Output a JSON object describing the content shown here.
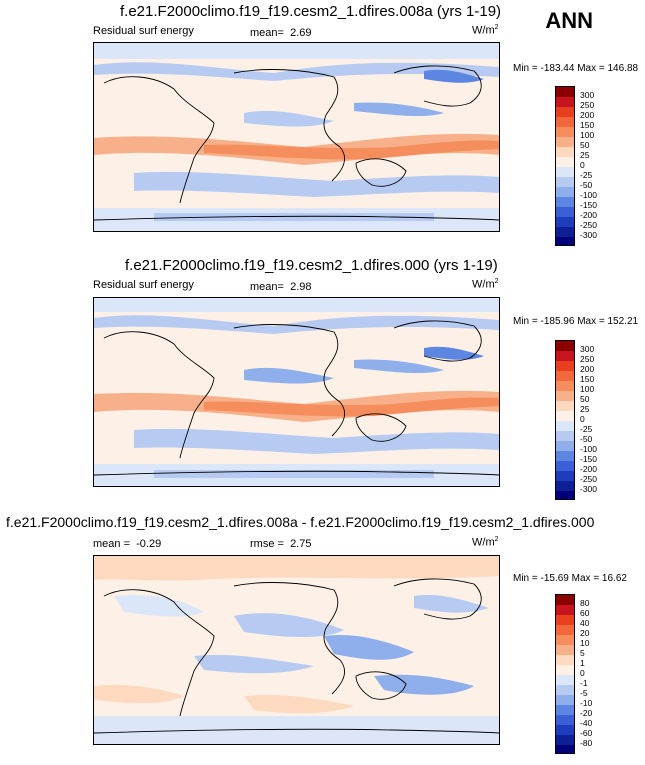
{
  "season": "ANN",
  "panels": [
    {
      "title": "f.e21.F2000climo.f19_f19.cesm2_1.dfires.008a (yrs 1-19)",
      "left_label": "Residual surf energy",
      "stat_label": "mean=",
      "stat_value": "2.69",
      "stat2_label": "",
      "stat2_value": "",
      "units": "W/m",
      "units_sup": "2",
      "minmax": "Min = -183.44 Max = 146.88",
      "levels": [
        "300",
        "250",
        "200",
        "150",
        "100",
        "50",
        "25",
        "0",
        "-25",
        "-50",
        "-100",
        "-150",
        "-200",
        "-250",
        "-300"
      ],
      "colors": [
        "#8b0000",
        "#c8141e",
        "#e8401e",
        "#f2683c",
        "#f58e5c",
        "#f7b08a",
        "#fcd9bf",
        "#fdf0e6",
        "#dbe6f8",
        "#b7cbf2",
        "#8eaeec",
        "#5c86e2",
        "#3a5fd6",
        "#1e3cbb",
        "#0d1f94",
        "#00007a"
      ]
    },
    {
      "title": "f.e21.F2000climo.f19_f19.cesm2_1.dfires.000 (yrs 1-19)",
      "left_label": "Residual surf energy",
      "stat_label": "mean=",
      "stat_value": "2.98",
      "stat2_label": "",
      "stat2_value": "",
      "units": "W/m",
      "units_sup": "2",
      "minmax": "Min = -185.96 Max = 152.21",
      "levels": [
        "300",
        "250",
        "200",
        "150",
        "100",
        "50",
        "25",
        "0",
        "-25",
        "-50",
        "-100",
        "-150",
        "-200",
        "-250",
        "-300"
      ],
      "colors": [
        "#8b0000",
        "#c8141e",
        "#e8401e",
        "#f2683c",
        "#f58e5c",
        "#f7b08a",
        "#fcd9bf",
        "#fdf0e6",
        "#dbe6f8",
        "#b7cbf2",
        "#8eaeec",
        "#5c86e2",
        "#3a5fd6",
        "#1e3cbb",
        "#0d1f94",
        "#00007a"
      ]
    },
    {
      "title": "f.e21.F2000climo.f19_f19.cesm2_1.dfires.008a - f.e21.F2000climo.f19_f19.cesm2_1.dfires.000",
      "left_label": "",
      "stat_label": "mean =",
      "stat_value": "-0.29",
      "stat2_label": "rmse =",
      "stat2_value": "2.75",
      "units": "W/m",
      "units_sup": "2",
      "minmax": "Min = -15.69 Max =  16.62",
      "levels": [
        "80",
        "60",
        "40",
        "20",
        "10",
        "5",
        "1",
        "0",
        "-1",
        "-5",
        "-10",
        "-20",
        "-40",
        "-60",
        "-80"
      ],
      "colors": [
        "#8b0000",
        "#c8141e",
        "#e8401e",
        "#f2683c",
        "#f58e5c",
        "#f7b08a",
        "#fcd9bf",
        "#fdf0e6",
        "#dbe6f8",
        "#b7cbf2",
        "#8eaeec",
        "#5c86e2",
        "#3a5fd6",
        "#1e3cbb",
        "#0d1f94",
        "#00007a"
      ]
    }
  ]
}
